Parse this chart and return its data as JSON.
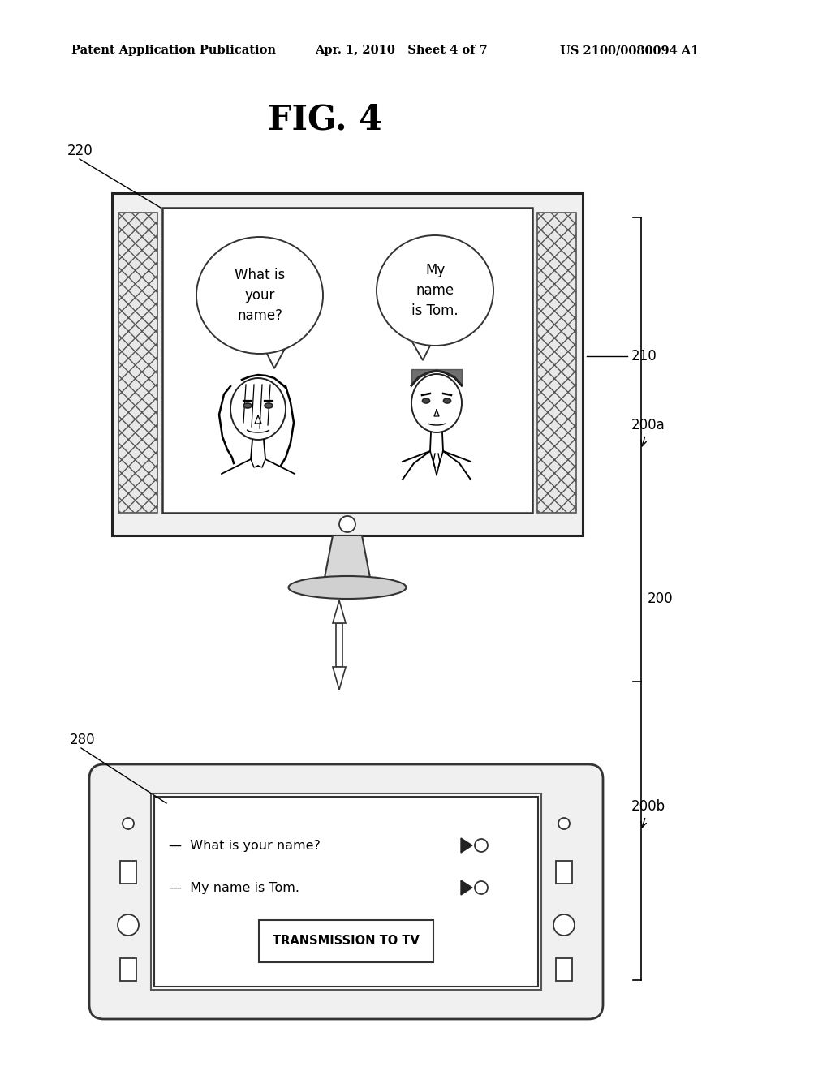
{
  "background_color": "#ffffff",
  "header_left": "Patent Application Publication",
  "header_center": "Apr. 1, 2010   Sheet 4 of 7",
  "header_right": "US 2100/0080094 A1",
  "fig_label": "FIG. 4",
  "label_220": "220",
  "label_210": "210",
  "label_200a": "200a",
  "label_200": "200",
  "label_200b": "200b",
  "label_280": "280",
  "speech1": "What is\nyour\nname?",
  "speech2": "My\nname\nis Tom.",
  "line1": "—  What is your name?",
  "line2": "—  My name is Tom.",
  "button_label": "TRANSMISSION TO TV"
}
